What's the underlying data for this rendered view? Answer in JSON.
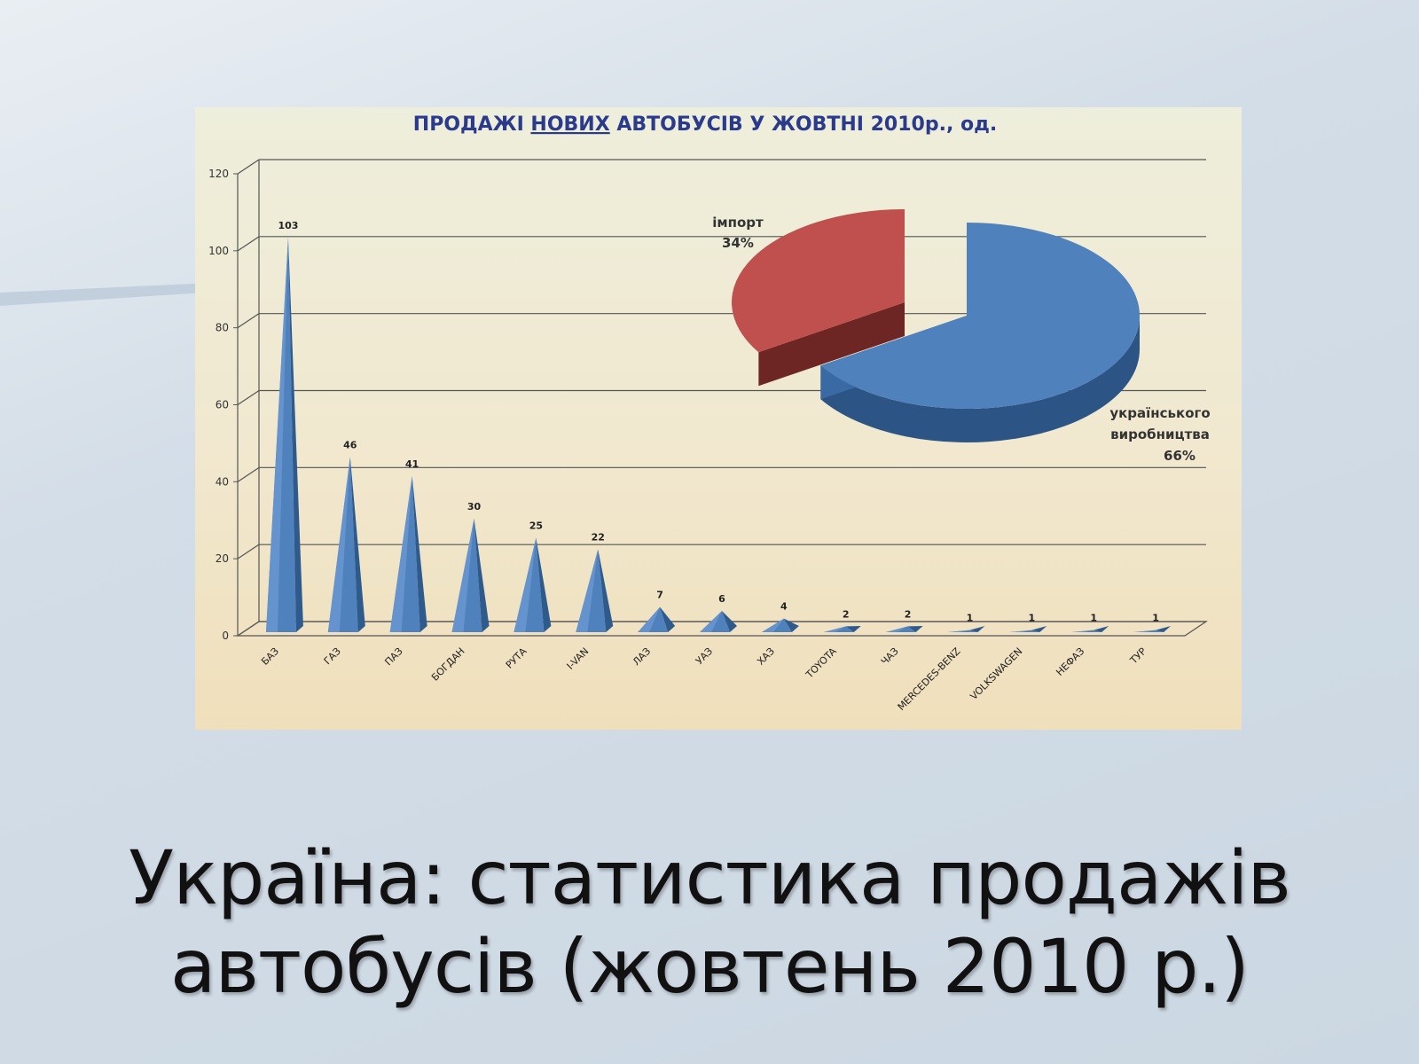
{
  "slide": {
    "title_line1": "Україна: статистика продажів",
    "title_line2": "автобусів (жовтень 2010 р.)"
  },
  "chart_data": [
    {
      "type": "bar",
      "title_parts": [
        "ПРОДАЖІ ",
        "НОВИХ",
        " АВТОБУСІВ У ЖОВТНІ 2010р., од."
      ],
      "categories": [
        "БАЗ",
        "ГАЗ",
        "ПАЗ",
        "БОГДАН",
        "РУТА",
        "I-VAN",
        "ЛАЗ",
        "УАЗ",
        "ХАЗ",
        "TOYOTA",
        "ЧАЗ",
        "MERCEDES-BENZ",
        "VOLKSWAGEN",
        "НЕФАЗ",
        "ТУР"
      ],
      "values": [
        103,
        46,
        41,
        30,
        25,
        22,
        7,
        6,
        4,
        2,
        2,
        1,
        1,
        1,
        1
      ],
      "ylim": [
        0,
        120
      ],
      "yticks": [
        0,
        20,
        40,
        60,
        80,
        100,
        120
      ],
      "grid": true,
      "bar_shape": "pyramid",
      "color": "#4f81bd"
    },
    {
      "type": "pie",
      "slices": [
        {
          "name": "імпорт",
          "value_label": "34%",
          "value": 34,
          "color": "#c0504d"
        },
        {
          "name": "українського виробництва",
          "name_line1": "українського",
          "name_line2": "виробництва",
          "value_label": "66%",
          "value": 66,
          "color": "#4f81bd"
        }
      ]
    }
  ]
}
